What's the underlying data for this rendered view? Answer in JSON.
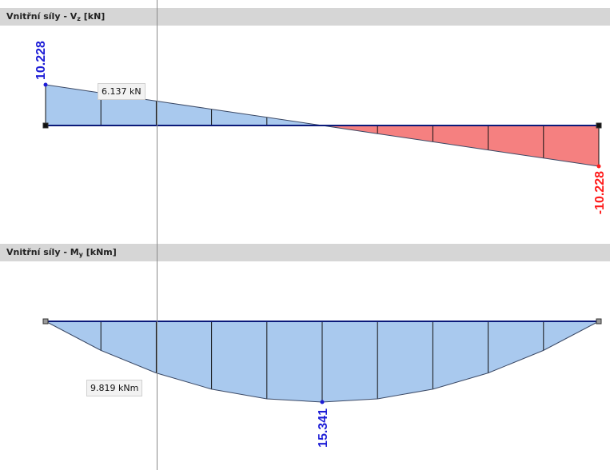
{
  "panels": [
    {
      "title_main": "Vnitřní síly - V",
      "title_sub": "z",
      "title_tail": " [kN]"
    },
    {
      "title_main": "Vnitřní síly - M",
      "title_sub": "y",
      "title_tail": " [kNm]"
    }
  ],
  "cursor_labels": {
    "shear": "6.137 kN",
    "moment": "9.819 kNm"
  },
  "colors": {
    "positive_fill": "#a9c9ee",
    "negative_fill": "#f58080",
    "beam_line": "#0b1a7a",
    "outline": "#3c4a66",
    "max_label_blue": "#1c1cd6",
    "min_label_red": "#ff1a1a"
  },
  "chart_data": [
    {
      "type": "area",
      "name": "Vz",
      "x": [
        0,
        0.1,
        0.2,
        0.3,
        0.4,
        0.5,
        0.6,
        0.7,
        0.8,
        0.9,
        1.0
      ],
      "values": [
        10.228,
        8.182,
        6.137,
        4.091,
        2.046,
        0,
        -2.046,
        -4.091,
        -6.137,
        -8.182,
        -10.228
      ],
      "extreme_labels": [
        "10.228",
        "-10.228"
      ],
      "unit": "kN"
    },
    {
      "type": "area",
      "name": "My",
      "x": [
        0,
        0.1,
        0.2,
        0.3,
        0.4,
        0.5,
        0.6,
        0.7,
        0.8,
        0.9,
        1.0
      ],
      "values": [
        0,
        5.523,
        9.819,
        12.887,
        14.727,
        15.341,
        14.727,
        12.887,
        9.819,
        5.523,
        0
      ],
      "extreme_labels": [
        "15.341"
      ],
      "unit": "kNm"
    }
  ]
}
